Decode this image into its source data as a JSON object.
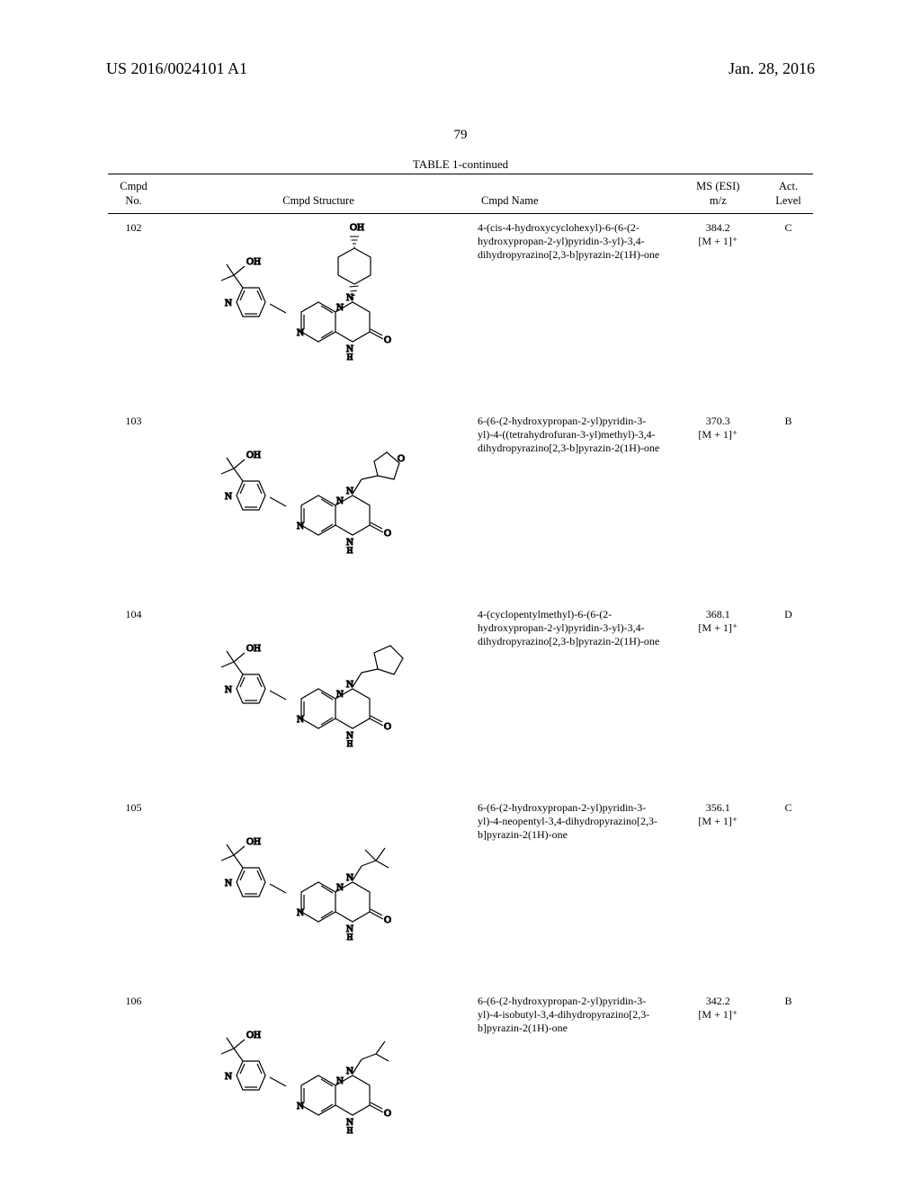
{
  "doc": {
    "header_left": "US 2016/0024101 A1",
    "header_right": "Jan. 28, 2016",
    "page_number": "79",
    "table_caption": "TABLE 1-continued"
  },
  "columns": {
    "no": {
      "line1": "Cmpd",
      "line2": "No."
    },
    "struct": {
      "line1": "Cmpd Structure"
    },
    "name": {
      "line1": "Cmpd Name"
    },
    "ms": {
      "line1": "MS (ESI)",
      "line2": "m/z"
    },
    "act": {
      "line1": "Act.",
      "line2": "Level"
    }
  },
  "rows": [
    {
      "no": "102",
      "name": "4-(cis-4-hydroxycyclohexyl)-6-(6-(2-hydroxypropan-2-yl)pyridin-3-yl)-3,4-dihydropyrazino[2,3-b]pyrazin-2(1H)-one",
      "ms_val": "384.2",
      "ms_ion": "[M + 1]⁺",
      "act": "C",
      "struct": "102"
    },
    {
      "no": "103",
      "name": "6-(6-(2-hydroxypropan-2-yl)pyridin-3-yl)-4-((tetrahydrofuran-3-yl)methyl)-3,4-dihydropyrazino[2,3-b]pyrazin-2(1H)-one",
      "ms_val": "370.3",
      "ms_ion": "[M + 1]⁺",
      "act": "B",
      "struct": "103"
    },
    {
      "no": "104",
      "name": "4-(cyclopentylmethyl)-6-(6-(2-hydroxypropan-2-yl)pyridin-3-yl)-3,4-dihydropyrazino[2,3-b]pyrazin-2(1H)-one",
      "ms_val": "368.1",
      "ms_ion": "[M + 1]⁺",
      "act": "D",
      "struct": "104"
    },
    {
      "no": "105",
      "name": "6-(6-(2-hydroxypropan-2-yl)pyridin-3-yl)-4-neopentyl-3,4-dihydropyrazino[2,3-b]pyrazin-2(1H)-one",
      "ms_val": "356.1",
      "ms_ion": "[M + 1]⁺",
      "act": "C",
      "struct": "105"
    },
    {
      "no": "106",
      "name": "6-(6-(2-hydroxypropan-2-yl)pyridin-3-yl)-4-isobutyl-3,4-dihydropyrazino[2,3-b]pyrazin-2(1H)-one",
      "ms_val": "342.2",
      "ms_ion": "[M + 1]⁺",
      "act": "B",
      "struct": "106"
    }
  ],
  "style": {
    "stroke": "#000000",
    "stroke_width": 1.2,
    "font_label": 11
  }
}
